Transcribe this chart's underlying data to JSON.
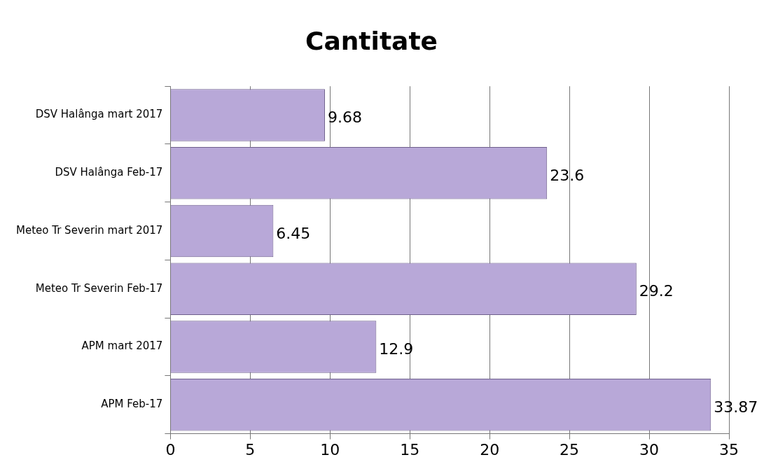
{
  "chart_data": {
    "type": "bar",
    "orientation": "horizontal",
    "title": "Cantitate",
    "categories": [
      "DSV Halânga mart 2017",
      "DSV Halânga Feb-17",
      "Meteo Tr Severin mart 2017",
      "Meteo Tr Severin Feb-17",
      "APM mart 2017",
      "APM Feb-17"
    ],
    "values": [
      9.68,
      23.6,
      6.45,
      29.2,
      12.9,
      33.87
    ],
    "color": "#b8a8d8",
    "xlim": [
      0,
      35
    ],
    "xticks": [
      0,
      5,
      10,
      15,
      20,
      25,
      30,
      35
    ],
    "grid": "x",
    "data_labels": true,
    "legend": false
  }
}
